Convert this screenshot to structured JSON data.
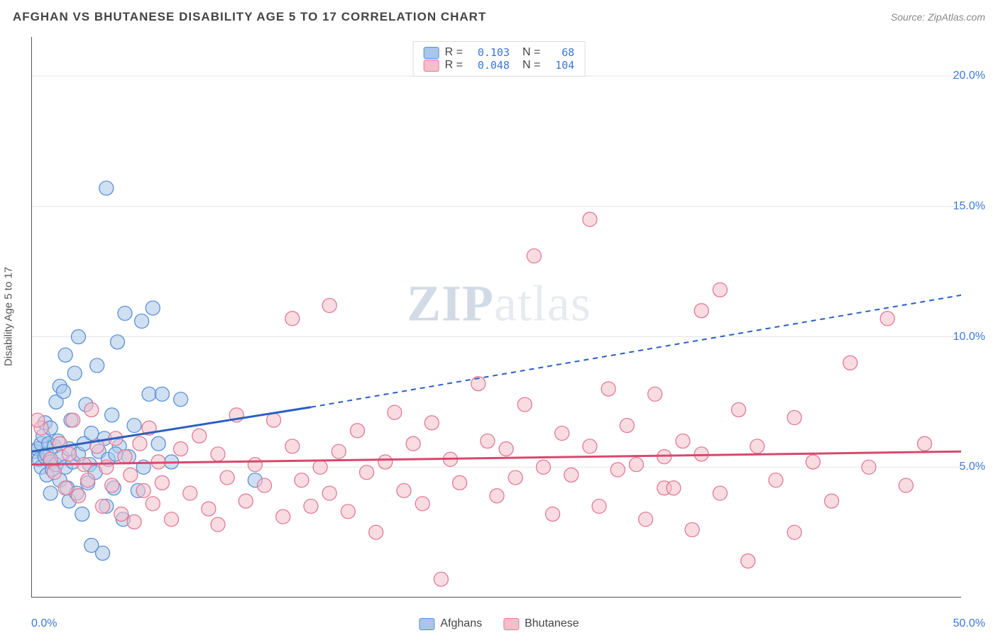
{
  "title": "AFGHAN VS BHUTANESE DISABILITY AGE 5 TO 17 CORRELATION CHART",
  "source": "Source: ZipAtlas.com",
  "ylabel": "Disability Age 5 to 17",
  "watermark_a": "ZIP",
  "watermark_b": "atlas",
  "chart": {
    "type": "scatter",
    "xlim": [
      0,
      50
    ],
    "ylim": [
      0,
      21.5
    ],
    "x_origin_label": "0.0%",
    "x_max_label": "50.0%",
    "x_tick_step": 5,
    "y_ticks": [
      5,
      10,
      15,
      20
    ],
    "y_tick_labels": [
      "5.0%",
      "10.0%",
      "15.0%",
      "20.0%"
    ],
    "grid_color": "#e5e5e5",
    "tick_color": "#555555",
    "axis_label_color": "#3b78d8",
    "background_color": "#ffffff",
    "marker_radius": 10,
    "marker_stroke_width": 1.3,
    "trend_line_width": 3,
    "series": [
      {
        "name": "Afghans",
        "fill": "#a8c6ea",
        "stroke": "#5a8fd6",
        "fill_opacity": 0.55,
        "r_value": "0.103",
        "n_value": "68",
        "trend_color": "#2b5fc1",
        "trend_start": [
          0,
          5.6
        ],
        "trend_solid_end": [
          15,
          7.3
        ],
        "trend_dash_end": [
          50,
          11.6
        ],
        "points": [
          [
            0.2,
            5.6
          ],
          [
            0.3,
            5.7
          ],
          [
            0.4,
            5.3
          ],
          [
            0.5,
            5.9
          ],
          [
            0.5,
            5.0
          ],
          [
            0.6,
            6.2
          ],
          [
            0.7,
            5.4
          ],
          [
            0.7,
            6.7
          ],
          [
            0.8,
            5.5
          ],
          [
            0.8,
            4.7
          ],
          [
            0.9,
            5.9
          ],
          [
            1.0,
            5.2
          ],
          [
            1.0,
            6.5
          ],
          [
            1.1,
            4.9
          ],
          [
            1.2,
            5.8
          ],
          [
            1.3,
            7.5
          ],
          [
            1.3,
            5.1
          ],
          [
            1.4,
            6.0
          ],
          [
            1.5,
            4.5
          ],
          [
            1.5,
            8.1
          ],
          [
            1.6,
            5.4
          ],
          [
            1.7,
            7.9
          ],
          [
            1.8,
            5.0
          ],
          [
            1.8,
            9.3
          ],
          [
            1.9,
            4.2
          ],
          [
            2.0,
            5.7
          ],
          [
            2.0,
            3.7
          ],
          [
            2.1,
            6.8
          ],
          [
            2.2,
            5.2
          ],
          [
            2.3,
            8.6
          ],
          [
            2.4,
            4.0
          ],
          [
            2.5,
            5.5
          ],
          [
            2.5,
            10.0
          ],
          [
            2.7,
            3.2
          ],
          [
            2.8,
            5.9
          ],
          [
            2.9,
            7.4
          ],
          [
            3.0,
            4.4
          ],
          [
            3.1,
            5.1
          ],
          [
            3.2,
            6.3
          ],
          [
            3.4,
            4.8
          ],
          [
            3.5,
            8.9
          ],
          [
            3.6,
            5.6
          ],
          [
            3.8,
            1.7
          ],
          [
            3.9,
            6.1
          ],
          [
            4.0,
            3.5
          ],
          [
            4.1,
            5.3
          ],
          [
            4.3,
            7.0
          ],
          [
            4.4,
            4.2
          ],
          [
            4.6,
            9.8
          ],
          [
            4.7,
            5.8
          ],
          [
            4.9,
            3.0
          ],
          [
            5.0,
            10.9
          ],
          [
            5.2,
            5.4
          ],
          [
            5.5,
            6.6
          ],
          [
            5.7,
            4.1
          ],
          [
            5.9,
            10.6
          ],
          [
            6.0,
            5.0
          ],
          [
            6.3,
            7.8
          ],
          [
            6.5,
            11.1
          ],
          [
            6.8,
            5.9
          ],
          [
            7.0,
            7.8
          ],
          [
            7.5,
            5.2
          ],
          [
            8.0,
            7.6
          ],
          [
            3.2,
            2.0
          ],
          [
            4.0,
            15.7
          ],
          [
            4.5,
            5.5
          ],
          [
            12.0,
            4.5
          ],
          [
            1.0,
            4.0
          ]
        ]
      },
      {
        "name": "Bhutanese",
        "fill": "#f4bfcb",
        "stroke": "#e17a95",
        "fill_opacity": 0.55,
        "r_value": "0.048",
        "n_value": "104",
        "trend_color": "#d9486e",
        "trend_start": [
          0,
          5.1
        ],
        "trend_solid_end": [
          50,
          5.6
        ],
        "trend_dash_end": null,
        "points": [
          [
            0.5,
            6.5
          ],
          [
            1.0,
            5.3
          ],
          [
            1.2,
            4.8
          ],
          [
            1.5,
            5.9
          ],
          [
            1.8,
            4.2
          ],
          [
            2.0,
            5.5
          ],
          [
            2.2,
            6.8
          ],
          [
            2.5,
            3.9
          ],
          [
            2.8,
            5.1
          ],
          [
            3.0,
            4.5
          ],
          [
            3.2,
            7.2
          ],
          [
            3.5,
            5.8
          ],
          [
            3.8,
            3.5
          ],
          [
            4.0,
            5.0
          ],
          [
            4.3,
            4.3
          ],
          [
            4.5,
            6.1
          ],
          [
            4.8,
            3.2
          ],
          [
            5.0,
            5.4
          ],
          [
            5.3,
            4.7
          ],
          [
            5.5,
            2.9
          ],
          [
            5.8,
            5.9
          ],
          [
            6.0,
            4.1
          ],
          [
            6.3,
            6.5
          ],
          [
            6.5,
            3.6
          ],
          [
            6.8,
            5.2
          ],
          [
            7.0,
            4.4
          ],
          [
            7.5,
            3.0
          ],
          [
            8.0,
            5.7
          ],
          [
            8.5,
            4.0
          ],
          [
            9.0,
            6.2
          ],
          [
            9.5,
            3.4
          ],
          [
            10.0,
            5.5
          ],
          [
            10.0,
            2.8
          ],
          [
            10.5,
            4.6
          ],
          [
            11.0,
            7.0
          ],
          [
            11.5,
            3.7
          ],
          [
            12.0,
            5.1
          ],
          [
            12.5,
            4.3
          ],
          [
            13.0,
            6.8
          ],
          [
            13.5,
            3.1
          ],
          [
            14.0,
            5.8
          ],
          [
            14.0,
            10.7
          ],
          [
            14.5,
            4.5
          ],
          [
            15.0,
            3.5
          ],
          [
            15.5,
            5.0
          ],
          [
            16.0,
            4.0
          ],
          [
            16.0,
            11.2
          ],
          [
            16.5,
            5.6
          ],
          [
            17.0,
            3.3
          ],
          [
            17.5,
            6.4
          ],
          [
            18.0,
            4.8
          ],
          [
            18.5,
            2.5
          ],
          [
            19.0,
            5.2
          ],
          [
            19.5,
            7.1
          ],
          [
            20.0,
            4.1
          ],
          [
            20.5,
            5.9
          ],
          [
            21.0,
            3.6
          ],
          [
            21.5,
            6.7
          ],
          [
            22.0,
            0.7
          ],
          [
            22.5,
            5.3
          ],
          [
            23.0,
            4.4
          ],
          [
            24.0,
            8.2
          ],
          [
            24.5,
            6.0
          ],
          [
            25.0,
            3.9
          ],
          [
            25.5,
            5.7
          ],
          [
            26.0,
            4.6
          ],
          [
            26.5,
            7.4
          ],
          [
            27.0,
            13.1
          ],
          [
            27.5,
            5.0
          ],
          [
            28.0,
            3.2
          ],
          [
            28.5,
            6.3
          ],
          [
            29.0,
            4.7
          ],
          [
            30.0,
            5.8
          ],
          [
            30.0,
            14.5
          ],
          [
            30.5,
            3.5
          ],
          [
            31.0,
            8.0
          ],
          [
            31.5,
            4.9
          ],
          [
            32.0,
            6.6
          ],
          [
            32.5,
            5.1
          ],
          [
            33.0,
            3.0
          ],
          [
            33.5,
            7.8
          ],
          [
            34.0,
            5.4
          ],
          [
            34.0,
            4.2
          ],
          [
            34.5,
            4.2
          ],
          [
            35.0,
            6.0
          ],
          [
            35.5,
            2.6
          ],
          [
            36.0,
            5.5
          ],
          [
            36.0,
            11.0
          ],
          [
            37.0,
            4.0
          ],
          [
            37.0,
            11.8
          ],
          [
            38.0,
            7.2
          ],
          [
            38.5,
            1.4
          ],
          [
            39.0,
            5.8
          ],
          [
            40.0,
            4.5
          ],
          [
            41.0,
            6.9
          ],
          [
            41.0,
            2.5
          ],
          [
            42.0,
            5.2
          ],
          [
            43.0,
            3.7
          ],
          [
            44.0,
            9.0
          ],
          [
            45.0,
            5.0
          ],
          [
            46.0,
            10.7
          ],
          [
            47.0,
            4.3
          ],
          [
            48.0,
            5.9
          ],
          [
            0.3,
            6.8
          ]
        ]
      }
    ],
    "legend_bottom": [
      {
        "label": "Afghans",
        "series_idx": 0
      },
      {
        "label": "Bhutanese",
        "series_idx": 1
      }
    ]
  }
}
